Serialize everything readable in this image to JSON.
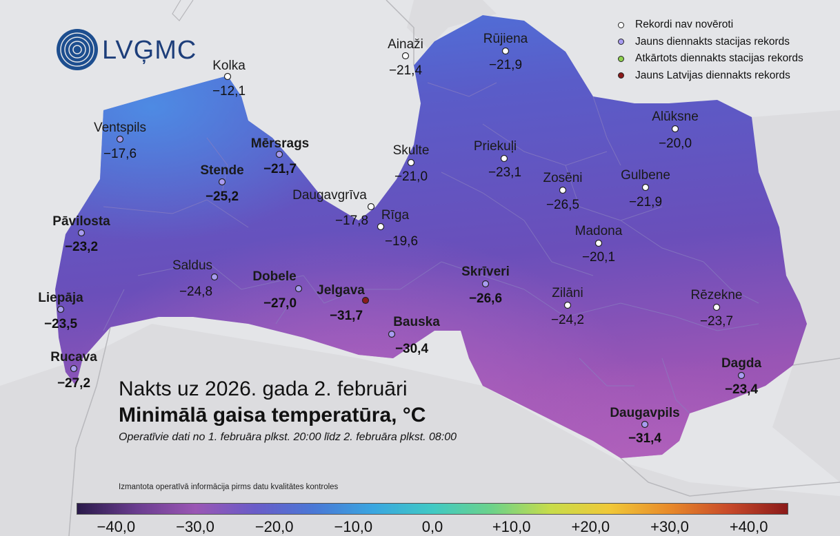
{
  "logo": {
    "text": "LVĢMC",
    "icon": "lvgmc-swirl-logo-icon"
  },
  "legend": [
    {
      "label": "Rekordi nav novēroti",
      "color": "#ffffff"
    },
    {
      "label": "Jauns diennakts stacijas rekords",
      "color": "#a89cf0"
    },
    {
      "label": "Atkārtots diennakts stacijas rekords",
      "color": "#8fd14f"
    },
    {
      "label": "Jauns Latvijas diennakts rekords",
      "color": "#8b1a1a"
    }
  ],
  "title": {
    "line1": "Nakts uz 2026. gada 2. februāri",
    "line2": "Minimālā gaisa temperatūra, °C",
    "line3": "Operatīvie dati no 1. februāra plkst. 20:00 līdz 2. februāra plkst. 08:00"
  },
  "note": "Izmantota operatīvā informācija pirms datu kvalitātes kontroles",
  "colorbar": {
    "min": -45,
    "max": 45,
    "ticks": [
      "−40,0",
      "−30,0",
      "−20,0",
      "−10,0",
      "0,0",
      "+10,0",
      "+20,0",
      "+30,0",
      "+40,0"
    ],
    "tick_values": [
      -40,
      -30,
      -20,
      -10,
      0,
      10,
      20,
      30,
      40
    ],
    "colors": [
      "#2a1a4a",
      "#6a3d8f",
      "#9a56b4",
      "#6a5cc8",
      "#4a78d6",
      "#3aa6e0",
      "#40c9c4",
      "#6cd28a",
      "#c8dc4a",
      "#f0c838",
      "#e88a2a",
      "#c84a2a",
      "#8b1a1a"
    ]
  },
  "stations": [
    {
      "name": "Kolka",
      "value": "−12,1",
      "bold": false,
      "record": "none"
    },
    {
      "name": "Ventspils",
      "value": "−17,6",
      "bold": false,
      "record": "new_station"
    },
    {
      "name": "Mērsrags",
      "value": "−21,7",
      "bold": true,
      "record": "new_station"
    },
    {
      "name": "Stende",
      "value": "−25,2",
      "bold": true,
      "record": "new_station"
    },
    {
      "name": "Pāvilosta",
      "value": "−23,2",
      "bold": true,
      "record": "new_station"
    },
    {
      "name": "Saldus",
      "value": "−24,8",
      "bold": false,
      "record": "new_station"
    },
    {
      "name": "Liepāja",
      "value": "−23,5",
      "bold": true,
      "record": "new_station"
    },
    {
      "name": "Rucava",
      "value": "−27,2",
      "bold": true,
      "record": "new_station"
    },
    {
      "name": "Dobele",
      "value": "−27,0",
      "bold": true,
      "record": "new_station"
    },
    {
      "name": "Jelgava",
      "value": "−31,7",
      "bold": true,
      "record": "new_latvia"
    },
    {
      "name": "Bauska",
      "value": "−30,4",
      "bold": true,
      "record": "new_station"
    },
    {
      "name": "Daugavgrīva",
      "value": "−17,8",
      "bold": false,
      "record": "none"
    },
    {
      "name": "Rīga",
      "value": "−19,6",
      "bold": false,
      "record": "none"
    },
    {
      "name": "Ainaži",
      "value": "−21,4",
      "bold": false,
      "record": "none"
    },
    {
      "name": "Skulte",
      "value": "−21,0",
      "bold": false,
      "record": "none"
    },
    {
      "name": "Rūjiena",
      "value": "−21,9",
      "bold": false,
      "record": "none"
    },
    {
      "name": "Priekuļi",
      "value": "−23,1",
      "bold": false,
      "record": "none"
    },
    {
      "name": "Zosēni",
      "value": "−26,5",
      "bold": false,
      "record": "none"
    },
    {
      "name": "Alūksne",
      "value": "−20,0",
      "bold": false,
      "record": "none"
    },
    {
      "name": "Gulbene",
      "value": "−21,9",
      "bold": false,
      "record": "none"
    },
    {
      "name": "Madona",
      "value": "−20,1",
      "bold": false,
      "record": "none"
    },
    {
      "name": "Skrīveri",
      "value": "−26,6",
      "bold": true,
      "record": "new_station"
    },
    {
      "name": "Zilāni",
      "value": "−24,2",
      "bold": false,
      "record": "none"
    },
    {
      "name": "Rēzekne",
      "value": "−23,7",
      "bold": false,
      "record": "none"
    },
    {
      "name": "Dagda",
      "value": "−23,4",
      "bold": true,
      "record": "new_station"
    },
    {
      "name": "Daugavpils",
      "value": "−31,4",
      "bold": true,
      "record": "new_station"
    }
  ]
}
